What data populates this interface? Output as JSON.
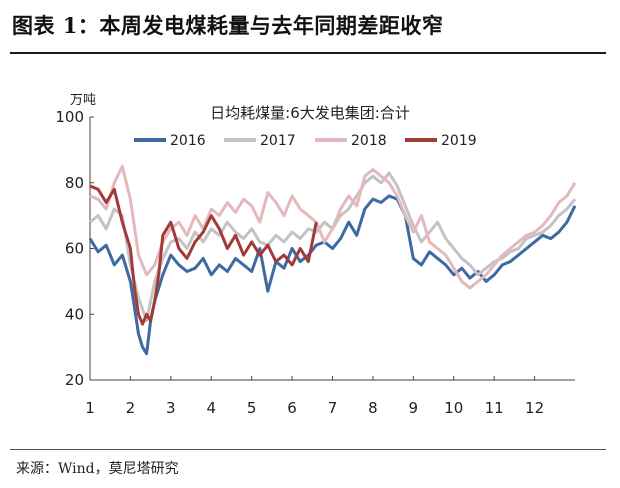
{
  "figure": {
    "title": "图表 1：本周发电煤耗量与去年同期差距收窄",
    "source": "来源：Wind，莫尼塔研究"
  },
  "chart_data": {
    "type": "line",
    "title": "日均耗煤量:6大发电集团:合计",
    "ylabel": "万吨",
    "xlabel": "",
    "ylim": [
      20,
      100
    ],
    "yticks": [
      "20",
      "40",
      "60",
      "80",
      "100"
    ],
    "xlim": [
      1,
      13
    ],
    "xticks": [
      "1",
      "2",
      "3",
      "4",
      "5",
      "6",
      "7",
      "8",
      "9",
      "10",
      "11",
      "12"
    ],
    "grid": false,
    "legend_position": "top",
    "series": [
      {
        "name": "2016",
        "color": "#3d6aa3",
        "x": [
          1.0,
          1.2,
          1.4,
          1.6,
          1.8,
          2.0,
          2.1,
          2.2,
          2.3,
          2.4,
          2.5,
          2.6,
          2.8,
          3.0,
          3.2,
          3.4,
          3.6,
          3.8,
          4.0,
          4.2,
          4.4,
          4.6,
          4.8,
          5.0,
          5.2,
          5.4,
          5.6,
          5.8,
          6.0,
          6.2,
          6.4,
          6.6,
          6.8,
          7.0,
          7.2,
          7.4,
          7.6,
          7.8,
          8.0,
          8.2,
          8.4,
          8.6,
          8.8,
          9.0,
          9.2,
          9.4,
          9.6,
          9.8,
          10.0,
          10.2,
          10.4,
          10.6,
          10.8,
          11.0,
          11.2,
          11.4,
          11.6,
          11.8,
          12.0,
          12.2,
          12.4,
          12.6,
          12.8,
          13.0
        ],
        "y": [
          63,
          59,
          61,
          55,
          58,
          50,
          42,
          34,
          30,
          28,
          38,
          44,
          52,
          58,
          55,
          53,
          54,
          57,
          52,
          55,
          53,
          57,
          55,
          53,
          60,
          47,
          56,
          54,
          60,
          56,
          58,
          61,
          62,
          60,
          63,
          68,
          64,
          72,
          75,
          74,
          76,
          75,
          70,
          57,
          55,
          59,
          57,
          55,
          52,
          54,
          51,
          53,
          50,
          52,
          55,
          56,
          58,
          60,
          62,
          64,
          63,
          65,
          68,
          73
        ]
      },
      {
        "name": "2017",
        "color": "#c3c3c3",
        "x": [
          1.0,
          1.2,
          1.4,
          1.6,
          1.8,
          2.0,
          2.2,
          2.4,
          2.6,
          2.8,
          3.0,
          3.2,
          3.4,
          3.6,
          3.8,
          4.0,
          4.2,
          4.4,
          4.6,
          4.8,
          5.0,
          5.2,
          5.4,
          5.6,
          5.8,
          6.0,
          6.2,
          6.4,
          6.6,
          6.8,
          7.0,
          7.2,
          7.4,
          7.6,
          7.8,
          8.0,
          8.2,
          8.4,
          8.6,
          8.8,
          9.0,
          9.2,
          9.4,
          9.6,
          9.8,
          10.0,
          10.2,
          10.4,
          10.6,
          10.8,
          11.0,
          11.2,
          11.4,
          11.6,
          11.8,
          12.0,
          12.2,
          12.4,
          12.6,
          12.8,
          13.0
        ],
        "y": [
          68,
          70,
          66,
          72,
          70,
          55,
          45,
          38,
          50,
          57,
          62,
          63,
          60,
          65,
          62,
          66,
          64,
          68,
          65,
          63,
          66,
          62,
          61,
          64,
          62,
          65,
          63,
          66,
          65,
          68,
          66,
          70,
          72,
          76,
          80,
          82,
          80,
          83,
          79,
          73,
          67,
          62,
          65,
          68,
          63,
          60,
          57,
          55,
          52,
          54,
          56,
          57,
          59,
          60,
          63,
          64,
          65,
          67,
          70,
          72,
          75
        ]
      },
      {
        "name": "2018",
        "color": "#e3b9bd",
        "x": [
          1.0,
          1.2,
          1.4,
          1.6,
          1.8,
          2.0,
          2.2,
          2.4,
          2.6,
          2.8,
          3.0,
          3.2,
          3.4,
          3.6,
          3.8,
          4.0,
          4.2,
          4.4,
          4.6,
          4.8,
          5.0,
          5.2,
          5.4,
          5.6,
          5.8,
          6.0,
          6.2,
          6.4,
          6.6,
          6.8,
          7.0,
          7.2,
          7.4,
          7.6,
          7.8,
          8.0,
          8.2,
          8.4,
          8.6,
          8.8,
          9.0,
          9.2,
          9.4,
          9.6,
          9.8,
          10.0,
          10.2,
          10.4,
          10.6,
          10.8,
          11.0,
          11.2,
          11.4,
          11.6,
          11.8,
          12.0,
          12.2,
          12.4,
          12.6,
          12.8,
          13.0
        ],
        "y": [
          76,
          75,
          72,
          80,
          85,
          75,
          58,
          52,
          55,
          62,
          66,
          68,
          64,
          70,
          66,
          72,
          70,
          74,
          71,
          75,
          73,
          68,
          77,
          74,
          70,
          76,
          72,
          70,
          68,
          62,
          66,
          72,
          76,
          73,
          82,
          84,
          82,
          80,
          76,
          70,
          65,
          70,
          62,
          60,
          58,
          54,
          50,
          48,
          50,
          52,
          55,
          58,
          60,
          62,
          64,
          65,
          67,
          70,
          74,
          76,
          80
        ]
      },
      {
        "name": "2019",
        "color": "#a33a3a",
        "x": [
          1.0,
          1.2,
          1.4,
          1.6,
          1.8,
          2.0,
          2.1,
          2.2,
          2.3,
          2.4,
          2.5,
          2.6,
          2.7,
          2.8,
          3.0,
          3.2,
          3.4,
          3.6,
          3.8,
          4.0,
          4.2,
          4.4,
          4.6,
          4.8,
          5.0,
          5.2,
          5.4,
          5.6,
          5.8,
          6.0,
          6.2,
          6.4,
          6.6
        ],
        "y": [
          79,
          78,
          74,
          78,
          68,
          60,
          48,
          40,
          37,
          40,
          38,
          44,
          52,
          64,
          68,
          60,
          57,
          62,
          65,
          70,
          66,
          60,
          64,
          58,
          62,
          58,
          61,
          56,
          58,
          55,
          60,
          56,
          68
        ]
      }
    ]
  }
}
